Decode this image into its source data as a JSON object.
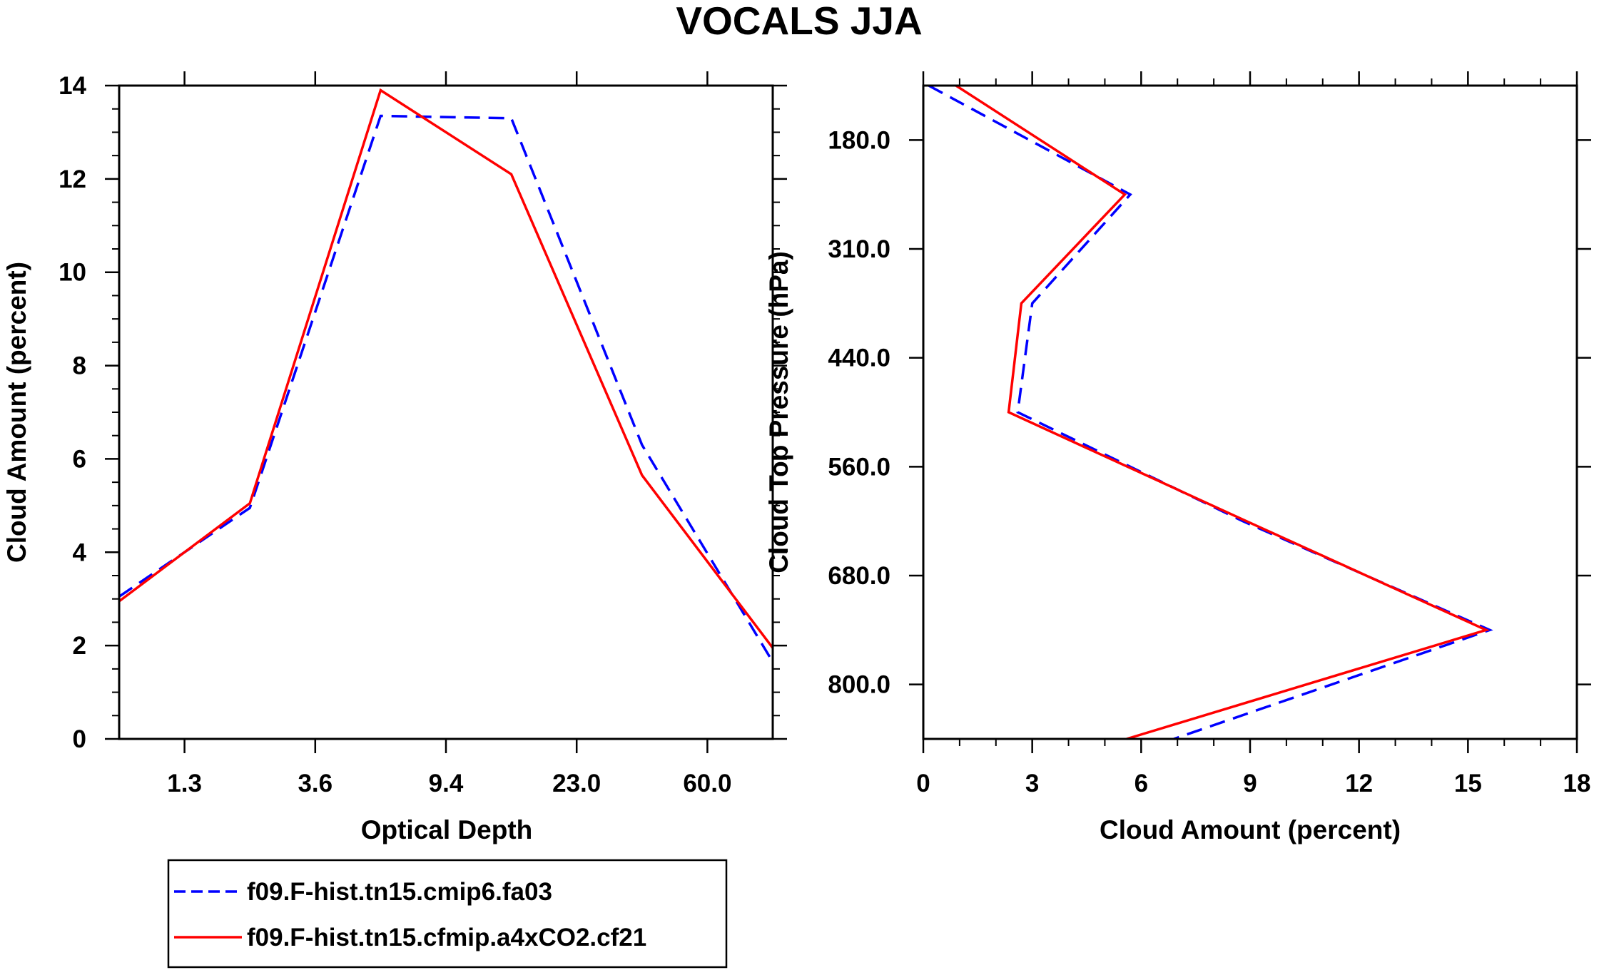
{
  "title": "VOCALS JJA",
  "colors": {
    "series1": "#0000ff",
    "series2": "#ff0000",
    "axis": "#000000",
    "background": "#ffffff"
  },
  "legend": {
    "entries": [
      {
        "label": "f09.F-hist.tn15.cmip6.fa03",
        "style": "dashed",
        "color": "#0000ff"
      },
      {
        "label": "f09.F-hist.tn15.cfmip.a4xCO2.cf21",
        "style": "solid",
        "color": "#ff0000"
      }
    ]
  },
  "chart_data": [
    {
      "type": "line",
      "title": "",
      "xlabel": "Optical Depth",
      "ylabel": "Cloud Amount (percent)",
      "x_tick_labels": [
        "1.3",
        "3.6",
        "9.4",
        "23.0",
        "60.0"
      ],
      "x_tick_positions": [
        1,
        3,
        5,
        7,
        9
      ],
      "xlim": [
        0,
        10
      ],
      "ylim": [
        0,
        14
      ],
      "y_ticks": [
        0,
        2,
        4,
        6,
        8,
        10,
        12,
        14
      ],
      "x": [
        0,
        2,
        4,
        6,
        8,
        10
      ],
      "series": [
        {
          "name": "f09.F-hist.tn15.cmip6.fa03",
          "style": "dashed",
          "values": [
            3.05,
            4.95,
            13.35,
            13.3,
            6.3,
            1.65
          ]
        },
        {
          "name": "f09.F-hist.tn15.cfmip.a4xCO2.cf21",
          "style": "solid",
          "values": [
            2.95,
            5.05,
            13.9,
            12.1,
            5.65,
            1.95
          ]
        }
      ],
      "grid": false
    },
    {
      "type": "line",
      "title": "",
      "xlabel": "Cloud Amount (percent)",
      "ylabel": "Cloud Top Pressure (hPa)",
      "xlim": [
        0,
        18
      ],
      "x_ticks": [
        0,
        3,
        6,
        9,
        12,
        15,
        18
      ],
      "y_tick_labels": [
        "180.0",
        "310.0",
        "440.0",
        "560.0",
        "680.0",
        "800.0"
      ],
      "y_tick_positions": [
        1,
        3,
        5,
        7,
        9,
        11
      ],
      "ylim": [
        0,
        12
      ],
      "y_inverted": true,
      "levels": [
        0,
        2,
        4,
        6,
        8,
        10,
        12
      ],
      "series": [
        {
          "name": "f09.F-hist.tn15.cmip6.fa03",
          "style": "dashed",
          "values": [
            0.15,
            5.7,
            3.0,
            2.6,
            8.8,
            15.6,
            6.9
          ]
        },
        {
          "name": "f09.F-hist.tn15.cfmip.a4xCO2.cf21",
          "style": "solid",
          "values": [
            0.9,
            5.55,
            2.7,
            2.35,
            8.9,
            15.5,
            5.6
          ]
        }
      ],
      "grid": false
    }
  ]
}
